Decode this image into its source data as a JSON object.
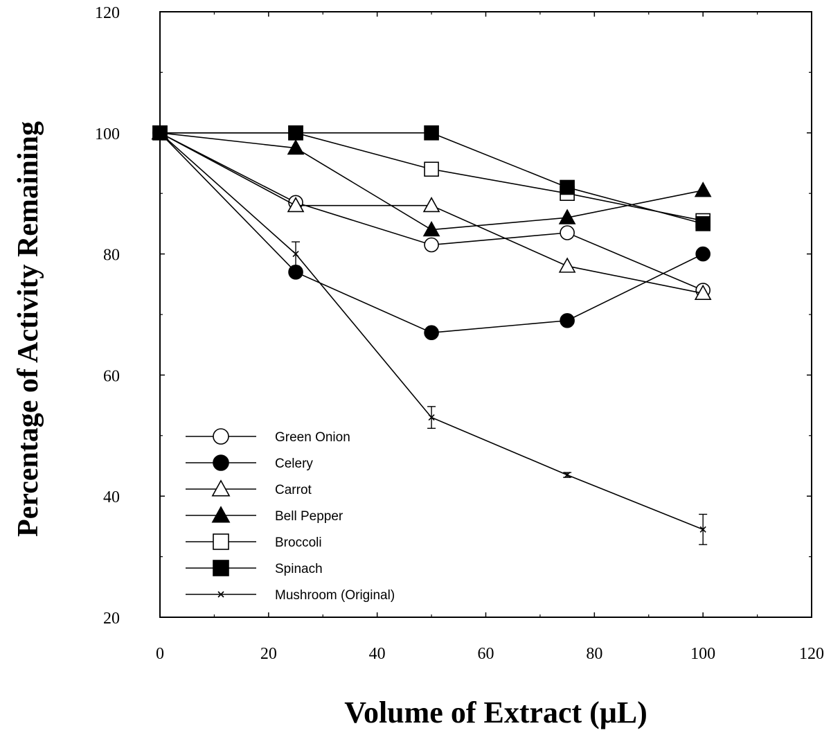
{
  "chart_data": {
    "type": "line",
    "title": "",
    "xlabel": "Volume of Extract (μL)",
    "ylabel": "Percentage of Activity Remaining",
    "xlim": [
      0,
      120
    ],
    "ylim": [
      20,
      120
    ],
    "xticks": [
      0,
      20,
      40,
      60,
      80,
      100,
      120
    ],
    "yticks": [
      20,
      40,
      60,
      80,
      100,
      120
    ],
    "grid": false,
    "legend_position": "bottom-left",
    "x": [
      0,
      25,
      50,
      75,
      100
    ],
    "series": [
      {
        "name": "Green Onion",
        "marker": "circle-open",
        "values": [
          100,
          88.5,
          81.5,
          83.5,
          74
        ]
      },
      {
        "name": "Celery",
        "marker": "circle-filled",
        "values": [
          100,
          77,
          67,
          69,
          80
        ]
      },
      {
        "name": "Carrot",
        "marker": "triangle-open",
        "values": [
          100,
          88,
          88,
          78,
          73.5
        ]
      },
      {
        "name": "Bell Pepper",
        "marker": "triangle-filled",
        "values": [
          100,
          97.5,
          84,
          86,
          90.5
        ]
      },
      {
        "name": "Broccoli",
        "marker": "square-open",
        "values": [
          100,
          100,
          94,
          90,
          85.5
        ]
      },
      {
        "name": "Spinach",
        "marker": "square-filled",
        "values": [
          100,
          100,
          100,
          91,
          85
        ]
      },
      {
        "name": "Mushroom (Original)",
        "marker": "x",
        "values": [
          100,
          80,
          53,
          43.5,
          34.5
        ],
        "error": [
          0,
          2,
          1.8,
          0.4,
          2.5
        ]
      }
    ]
  }
}
